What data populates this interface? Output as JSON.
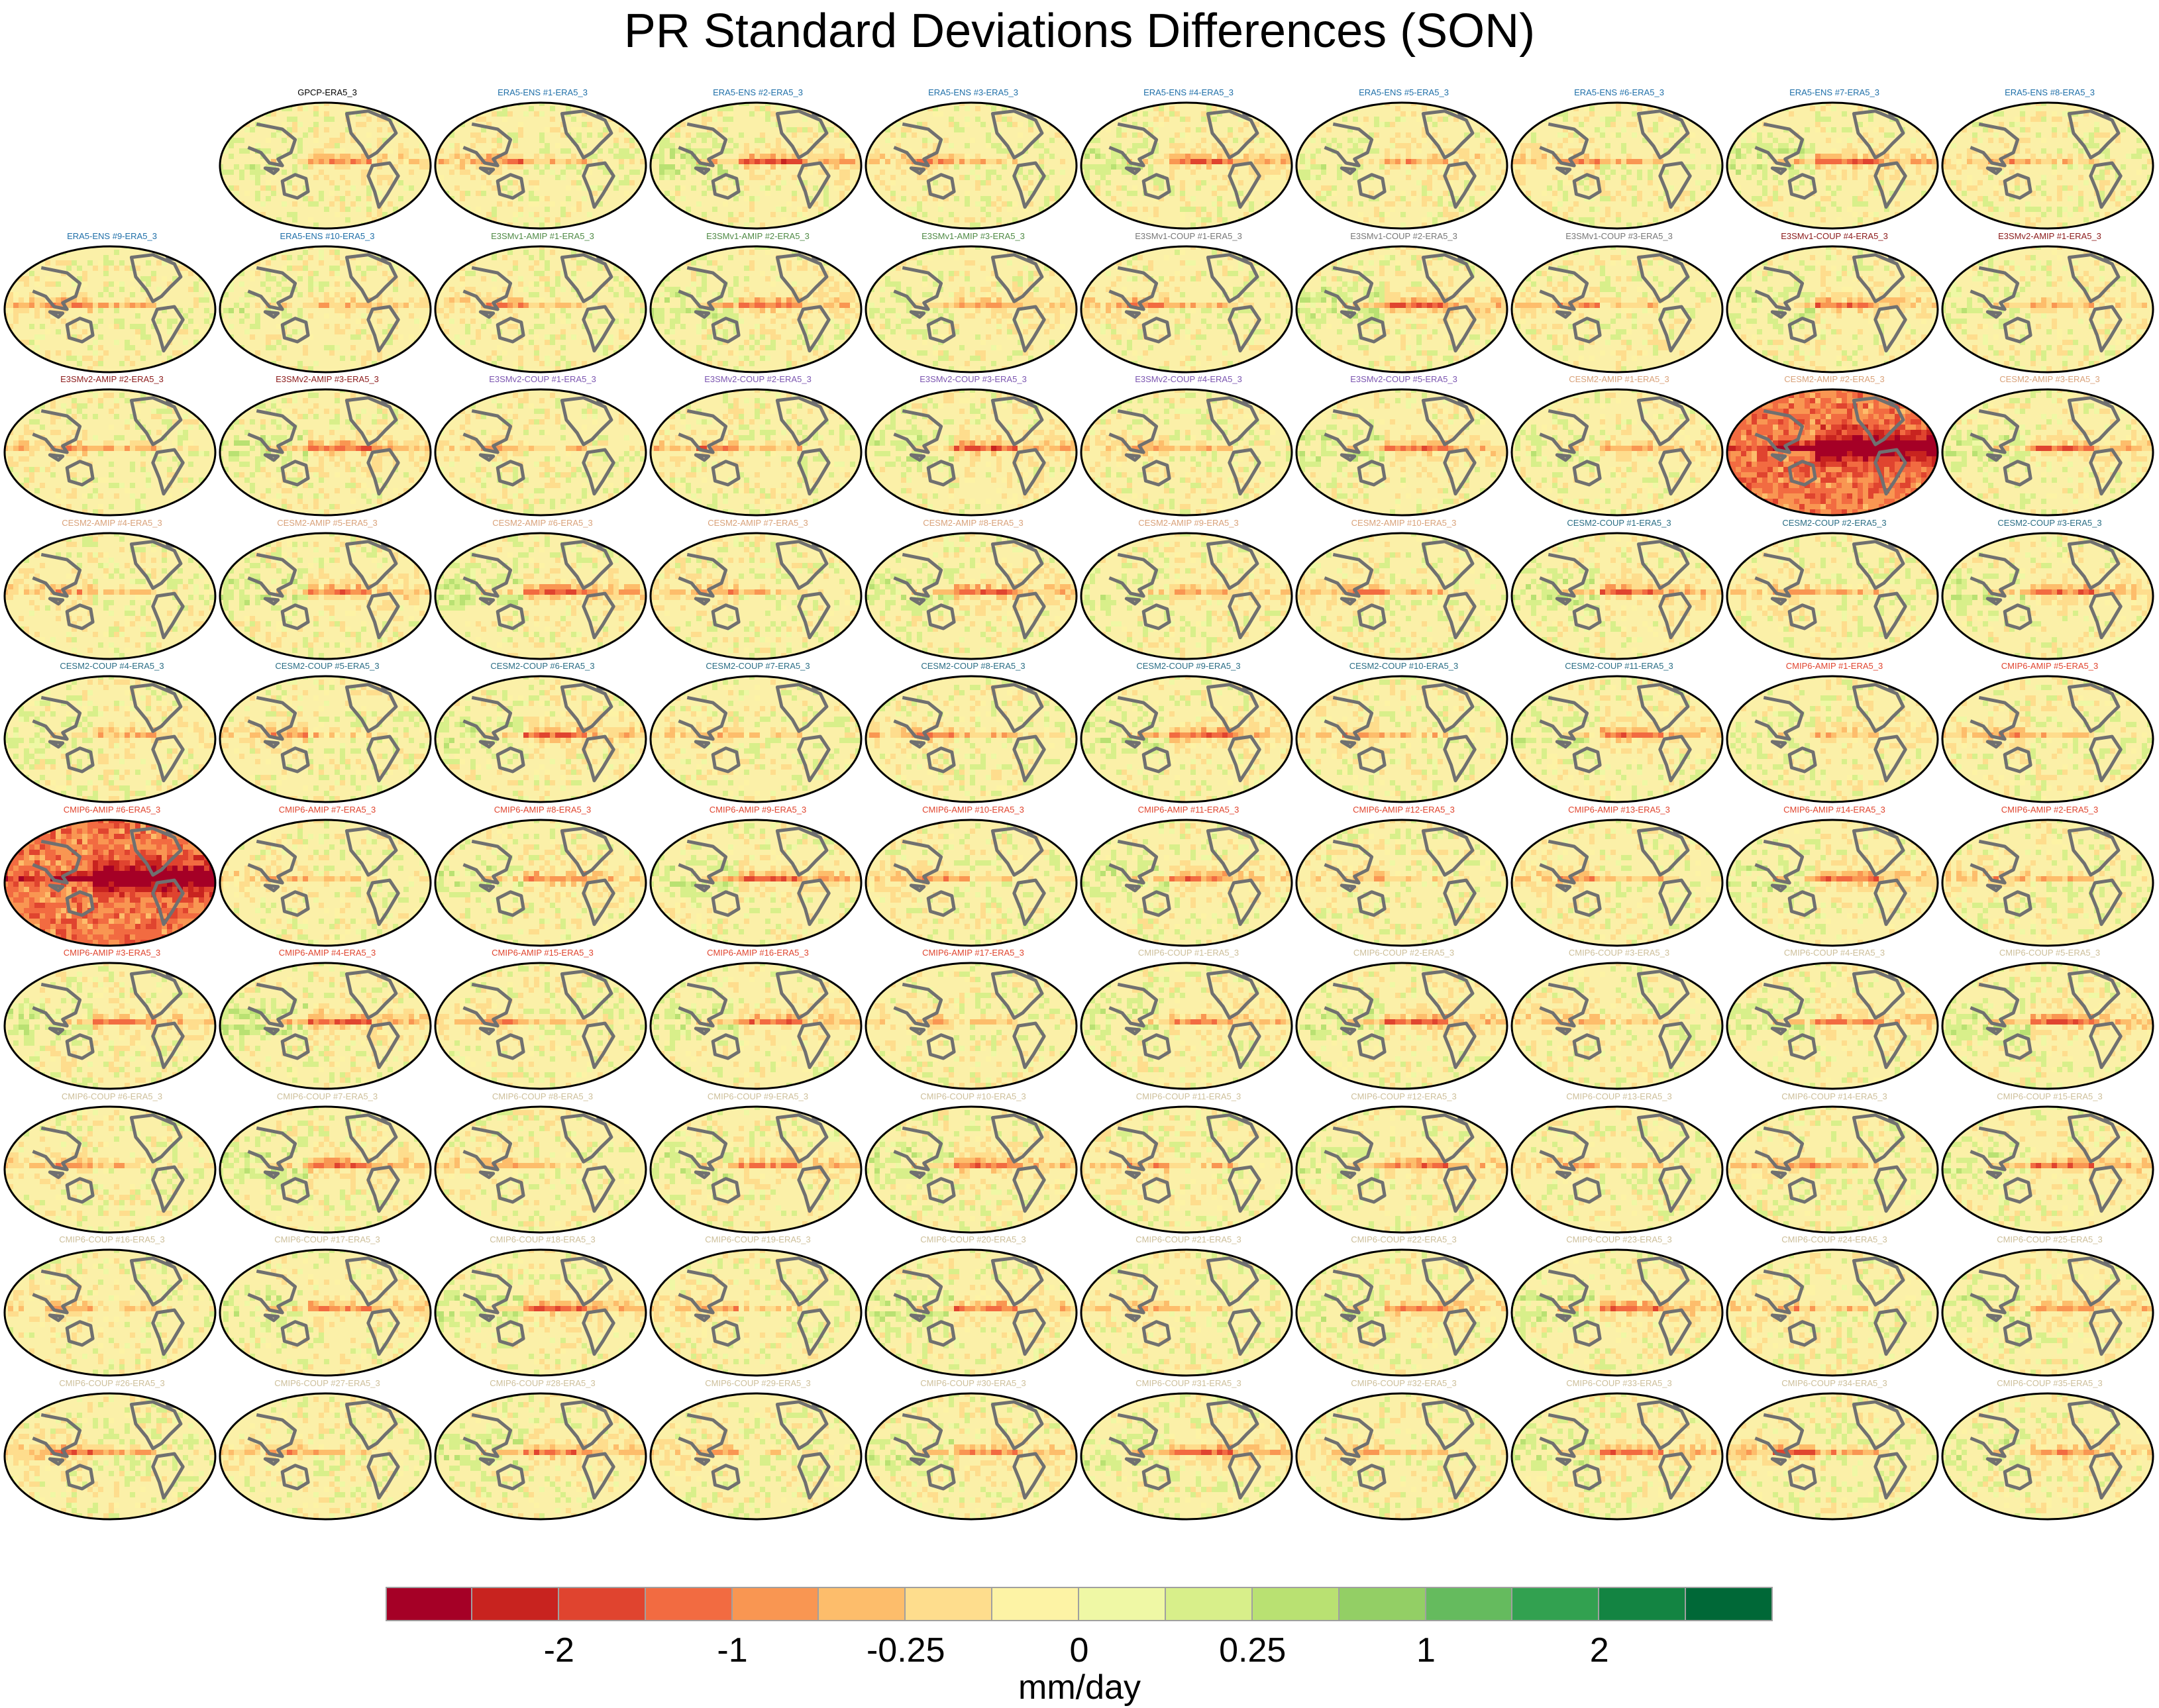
{
  "title": "PR Standard Deviations Differences (SON)",
  "units": "mm/day",
  "colorbar": {
    "colors": [
      "#a50026",
      "#c8231f",
      "#e0442f",
      "#f26b41",
      "#f99652",
      "#fdbd6b",
      "#fedd8d",
      "#fdf3a5",
      "#eff8a5",
      "#d8ef8a",
      "#b9e172",
      "#93cf65",
      "#65bb5e",
      "#32a150",
      "#138442",
      "#006837"
    ],
    "tick_labels": [
      "-2",
      "-1",
      "-0.25",
      "0",
      "0.25",
      "1",
      "2"
    ]
  },
  "panels": [
    {
      "label": "GPCP-ERA5_3",
      "color": "#000000"
    },
    {
      "label": "ERA5-ENS    #1-ERA5_3",
      "color": "#1f6fa8"
    },
    {
      "label": "ERA5-ENS    #2-ERA5_3",
      "color": "#1f6fa8"
    },
    {
      "label": "ERA5-ENS    #3-ERA5_3",
      "color": "#1f6fa8"
    },
    {
      "label": "ERA5-ENS    #4-ERA5_3",
      "color": "#1f6fa8"
    },
    {
      "label": "ERA5-ENS    #5-ERA5_3",
      "color": "#1f6fa8"
    },
    {
      "label": "ERA5-ENS    #6-ERA5_3",
      "color": "#1f6fa8"
    },
    {
      "label": "ERA5-ENS    #7-ERA5_3",
      "color": "#1f6fa8"
    },
    {
      "label": "ERA5-ENS    #8-ERA5_3",
      "color": "#1f6fa8"
    },
    {
      "label": "ERA5-ENS    #9-ERA5_3",
      "color": "#1f6fa8"
    },
    {
      "label": "ERA5-ENS    #10-ERA5_3",
      "color": "#1f6fa8"
    },
    {
      "label": "E3SMv1-AMIP #1-ERA5_3",
      "color": "#4f8a45"
    },
    {
      "label": "E3SMv1-AMIP #2-ERA5_3",
      "color": "#4f8a45"
    },
    {
      "label": "E3SMv1-AMIP #3-ERA5_3",
      "color": "#4f8a45"
    },
    {
      "label": "E3SMv1-COUP #1-ERA5_3",
      "color": "#777777"
    },
    {
      "label": "E3SMv1-COUP #2-ERA5_3",
      "color": "#777777"
    },
    {
      "label": "E3SMv1-COUP #3-ERA5_3",
      "color": "#777777"
    },
    {
      "label": "E3SMv1-COUP #4-ERA5_3",
      "color": "#8b1a1a"
    },
    {
      "label": "E3SMv2-AMIP #1-ERA5_3",
      "color": "#8b1a1a"
    },
    {
      "label": "E3SMv2-AMIP #2-ERA5_3",
      "color": "#8b1a1a"
    },
    {
      "label": "E3SMv2-AMIP #3-ERA5_3",
      "color": "#8b1a1a"
    },
    {
      "label": "E3SMv2-COUP #1-ERA5_3",
      "color": "#7b55b0"
    },
    {
      "label": "E3SMv2-COUP #2-ERA5_3",
      "color": "#7b55b0"
    },
    {
      "label": "E3SMv2-COUP #3-ERA5_3",
      "color": "#7b55b0"
    },
    {
      "label": "E3SMv2-COUP #4-ERA5_3",
      "color": "#7b55b0"
    },
    {
      "label": "E3SMv2-COUP #5-ERA5_3",
      "color": "#7b55b0"
    },
    {
      "label": "CESM2-AMIP #1-ERA5_3",
      "color": "#d9a27a"
    },
    {
      "label": "CESM2-AMIP #2-ERA5_3",
      "color": "#d9a27a"
    },
    {
      "label": "CESM2-AMIP #3-ERA5_3",
      "color": "#d9a27a"
    },
    {
      "label": "CESM2-AMIP #4-ERA5_3",
      "color": "#d9a27a"
    },
    {
      "label": "CESM2-AMIP #5-ERA5_3",
      "color": "#d9a27a"
    },
    {
      "label": "CESM2-AMIP #6-ERA5_3",
      "color": "#d9a27a"
    },
    {
      "label": "CESM2-AMIP #7-ERA5_3",
      "color": "#d9a27a"
    },
    {
      "label": "CESM2-AMIP #8-ERA5_3",
      "color": "#d9a27a"
    },
    {
      "label": "CESM2-AMIP #9-ERA5_3",
      "color": "#d9a27a"
    },
    {
      "label": "CESM2-AMIP #10-ERA5_3",
      "color": "#d9a27a"
    },
    {
      "label": "CESM2-COUP #1-ERA5_3",
      "color": "#2b6e85"
    },
    {
      "label": "CESM2-COUP #2-ERA5_3",
      "color": "#2b6e85"
    },
    {
      "label": "CESM2-COUP #3-ERA5_3",
      "color": "#2b6e85"
    },
    {
      "label": "CESM2-COUP #4-ERA5_3",
      "color": "#2b6e85"
    },
    {
      "label": "CESM2-COUP #5-ERA5_3",
      "color": "#2b6e85"
    },
    {
      "label": "CESM2-COUP #6-ERA5_3",
      "color": "#2b6e85"
    },
    {
      "label": "CESM2-COUP #7-ERA5_3",
      "color": "#2b6e85"
    },
    {
      "label": "CESM2-COUP #8-ERA5_3",
      "color": "#2b6e85"
    },
    {
      "label": "CESM2-COUP #9-ERA5_3",
      "color": "#2b6e85"
    },
    {
      "label": "CESM2-COUP #10-ERA5_3",
      "color": "#2b6e85"
    },
    {
      "label": "CESM2-COUP #11-ERA5_3",
      "color": "#2b6e85"
    },
    {
      "label": "CMIP6-AMIP #1-ERA5_3",
      "color": "#e0452f"
    },
    {
      "label": "CMIP6-AMIP #5-ERA5_3",
      "color": "#e0452f"
    },
    {
      "label": "CMIP6-AMIP #6-ERA5_3",
      "color": "#e0452f"
    },
    {
      "label": "CMIP6-AMIP #7-ERA5_3",
      "color": "#e0452f"
    },
    {
      "label": "CMIP6-AMIP #8-ERA5_3",
      "color": "#e0452f"
    },
    {
      "label": "CMIP6-AMIP #9-ERA5_3",
      "color": "#e0452f"
    },
    {
      "label": "CMIP6-AMIP #10-ERA5_3",
      "color": "#e0452f"
    },
    {
      "label": "CMIP6-AMIP #11-ERA5_3",
      "color": "#e0452f"
    },
    {
      "label": "CMIP6-AMIP #12-ERA5_3",
      "color": "#e0452f"
    },
    {
      "label": "CMIP6-AMIP #13-ERA5_3",
      "color": "#e0452f"
    },
    {
      "label": "CMIP6-AMIP #14-ERA5_3",
      "color": "#e0452f"
    },
    {
      "label": "CMIP6-AMIP #2-ERA5_3",
      "color": "#e0452f"
    },
    {
      "label": "CMIP6-AMIP #3-ERA5_3",
      "color": "#e0452f"
    },
    {
      "label": "CMIP6-AMIP #4-ERA5_3",
      "color": "#e0452f"
    },
    {
      "label": "CMIP6-AMIP #15-ERA5_3",
      "color": "#e0452f"
    },
    {
      "label": "CMIP6-AMIP #16-ERA5_3",
      "color": "#e0452f"
    },
    {
      "label": "CMIP6-AMIP #17-ERA5_3",
      "color": "#e0452f"
    },
    {
      "label": "CMIP6-COUP #1-ERA5_3",
      "color": "#cdbf9a"
    },
    {
      "label": "CMIP6-COUP #2-ERA5_3",
      "color": "#cdbf9a"
    },
    {
      "label": "CMIP6-COUP #3-ERA5_3",
      "color": "#cdbf9a"
    },
    {
      "label": "CMIP6-COUP #4-ERA5_3",
      "color": "#cdbf9a"
    },
    {
      "label": "CMIP6-COUP #5-ERA5_3",
      "color": "#cdbf9a"
    },
    {
      "label": "CMIP6-COUP #6-ERA5_3",
      "color": "#cdbf9a"
    },
    {
      "label": "CMIP6-COUP #7-ERA5_3",
      "color": "#cdbf9a"
    },
    {
      "label": "CMIP6-COUP #8-ERA5_3",
      "color": "#cdbf9a"
    },
    {
      "label": "CMIP6-COUP #9-ERA5_3",
      "color": "#cdbf9a"
    },
    {
      "label": "CMIP6-COUP #10-ERA5_3",
      "color": "#cdbf9a"
    },
    {
      "label": "CMIP6-COUP #11-ERA5_3",
      "color": "#cdbf9a"
    },
    {
      "label": "CMIP6-COUP #12-ERA5_3",
      "color": "#cdbf9a"
    },
    {
      "label": "CMIP6-COUP #13-ERA5_3",
      "color": "#cdbf9a"
    },
    {
      "label": "CMIP6-COUP #14-ERA5_3",
      "color": "#cdbf9a"
    },
    {
      "label": "CMIP6-COUP #15-ERA5_3",
      "color": "#cdbf9a"
    },
    {
      "label": "CMIP6-COUP #16-ERA5_3",
      "color": "#cdbf9a"
    },
    {
      "label": "CMIP6-COUP #17-ERA5_3",
      "color": "#cdbf9a"
    },
    {
      "label": "CMIP6-COUP #18-ERA5_3",
      "color": "#cdbf9a"
    },
    {
      "label": "CMIP6-COUP #19-ERA5_3",
      "color": "#cdbf9a"
    },
    {
      "label": "CMIP6-COUP #20-ERA5_3",
      "color": "#cdbf9a"
    },
    {
      "label": "CMIP6-COUP #21-ERA5_3",
      "color": "#cdbf9a"
    },
    {
      "label": "CMIP6-COUP #22-ERA5_3",
      "color": "#cdbf9a"
    },
    {
      "label": "CMIP6-COUP #23-ERA5_3",
      "color": "#cdbf9a"
    },
    {
      "label": "CMIP6-COUP #24-ERA5_3",
      "color": "#cdbf9a"
    },
    {
      "label": "CMIP6-COUP #25-ERA5_3",
      "color": "#cdbf9a"
    },
    {
      "label": "CMIP6-COUP #26-ERA5_3",
      "color": "#cdbf9a"
    },
    {
      "label": "CMIP6-COUP #27-ERA5_3",
      "color": "#cdbf9a"
    },
    {
      "label": "CMIP6-COUP #28-ERA5_3",
      "color": "#cdbf9a"
    },
    {
      "label": "CMIP6-COUP #29-ERA5_3",
      "color": "#cdbf9a"
    },
    {
      "label": "CMIP6-COUP #30-ERA5_3",
      "color": "#cdbf9a"
    },
    {
      "label": "CMIP6-COUP #31-ERA5_3",
      "color": "#cdbf9a"
    },
    {
      "label": "CMIP6-COUP #32-ERA5_3",
      "color": "#cdbf9a"
    },
    {
      "label": "CMIP6-COUP #33-ERA5_3",
      "color": "#cdbf9a"
    },
    {
      "label": "CMIP6-COUP #34-ERA5_3",
      "color": "#cdbf9a"
    },
    {
      "label": "CMIP6-COUP #35-ERA5_3",
      "color": "#cdbf9a"
    }
  ]
}
